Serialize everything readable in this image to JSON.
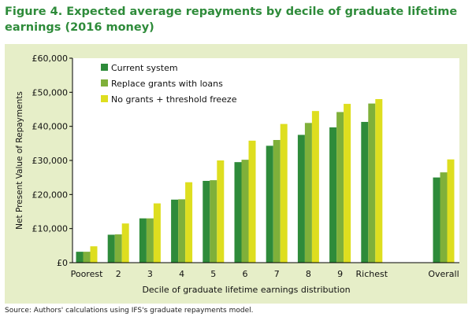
{
  "figure": {
    "title": "Figure 4. Expected average repayments by decile of graduate lifetime earnings (2016 money)",
    "source": "Source: Authors' calculations using IFS's graduate repayments model."
  },
  "chart_data": {
    "type": "bar",
    "title": "",
    "xlabel": "Decile of graduate lifetime earnings distribution",
    "ylabel": "Net Present Value of Repayments",
    "ylim": [
      0,
      60000
    ],
    "yticks": [
      0,
      10000,
      20000,
      30000,
      40000,
      50000,
      60000
    ],
    "ytick_labels": [
      "£0",
      "£10,000",
      "£20,000",
      "£30,000",
      "£40,000",
      "£50,000",
      "£60,000"
    ],
    "categories": [
      "Poorest",
      "2",
      "3",
      "4",
      "5",
      "6",
      "7",
      "8",
      "9",
      "Richest",
      "Overall"
    ],
    "series": [
      {
        "name": "Current system",
        "color": "#2e8b3a",
        "values": [
          3200,
          8200,
          13000,
          18500,
          24000,
          29500,
          34300,
          37500,
          39700,
          41300,
          25000
        ]
      },
      {
        "name": "Replace grants with loans",
        "color": "#7fb03a",
        "values": [
          3200,
          8300,
          13000,
          18600,
          24200,
          30200,
          36000,
          41000,
          44200,
          46700,
          26500
        ]
      },
      {
        "name": "No grants + threshold freeze",
        "color": "#dede1f",
        "values": [
          4800,
          11500,
          17400,
          23600,
          30000,
          35800,
          40700,
          44500,
          46600,
          48000,
          30300
        ]
      }
    ],
    "legend_position": "top-left",
    "grid": false
  }
}
